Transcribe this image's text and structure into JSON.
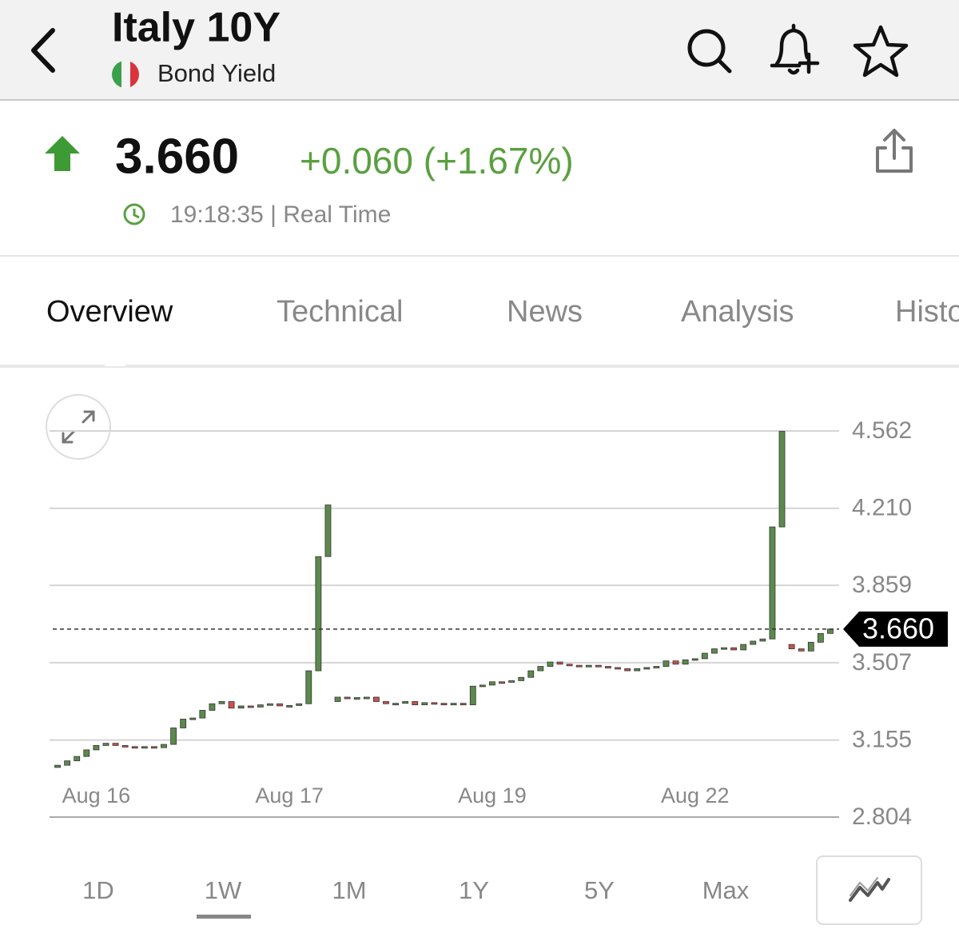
{
  "header": {
    "title": "Italy 10Y",
    "subtitle": "Bond Yield"
  },
  "quote": {
    "price": "3.660",
    "change": "+0.060 (+1.67%)",
    "time": "19:18:35 | Real Time"
  },
  "tabs": [
    "Overview",
    "Technical",
    "News",
    "Analysis",
    "Historical"
  ],
  "chart_data": {
    "type": "candlestick",
    "categories": [
      null,
      null,
      null,
      null,
      "Aug 16",
      null,
      null,
      null,
      null,
      null,
      null,
      null,
      null,
      null,
      null,
      null,
      null,
      null,
      null,
      null,
      null,
      null,
      null,
      null,
      "Aug 17",
      null,
      null,
      null,
      null,
      null,
      null,
      null,
      null,
      null,
      null,
      null,
      null,
      null,
      null,
      null,
      null,
      null,
      null,
      null,
      null,
      "Aug 19",
      null,
      null,
      null,
      null,
      null,
      null,
      null,
      null,
      null,
      null,
      null,
      null,
      null,
      null,
      null,
      null,
      null,
      null,
      null,
      null,
      "Aug 22",
      null,
      null,
      null,
      null,
      null,
      null,
      null,
      null,
      null,
      null,
      null,
      null,
      null,
      null
    ],
    "open": [
      3.03,
      3.04,
      3.06,
      3.08,
      3.11,
      3.13,
      3.14,
      3.13,
      3.125,
      3.12,
      3.125,
      3.12,
      3.135,
      3.21,
      3.25,
      3.255,
      3.29,
      3.32,
      3.33,
      3.3,
      3.31,
      3.305,
      3.315,
      3.32,
      3.31,
      3.312,
      3.32,
      3.47,
      3.99,
      3.33,
      3.35,
      3.345,
      3.348,
      3.35,
      3.33,
      3.32,
      3.322,
      3.33,
      3.315,
      3.325,
      3.322,
      3.32,
      3.322,
      3.315,
      3.4,
      3.405,
      3.42,
      3.418,
      3.425,
      3.44,
      3.47,
      3.49,
      3.51,
      3.5,
      3.495,
      3.492,
      3.495,
      3.49,
      3.485,
      3.48,
      3.47,
      3.48,
      3.485,
      3.49,
      3.515,
      3.5,
      3.52,
      3.525,
      3.55,
      3.57,
      3.575,
      3.565,
      3.59,
      3.605,
      3.615,
      4.125,
      3.59,
      3.57,
      3.56,
      3.6,
      3.64
    ],
    "close": [
      3.04,
      3.06,
      3.08,
      3.11,
      3.13,
      3.14,
      3.13,
      3.125,
      3.12,
      3.125,
      3.12,
      3.135,
      3.21,
      3.25,
      3.255,
      3.29,
      3.32,
      3.33,
      3.3,
      3.31,
      3.305,
      3.315,
      3.32,
      3.31,
      3.312,
      3.32,
      3.47,
      3.99,
      4.225,
      3.35,
      3.345,
      3.348,
      3.35,
      3.33,
      3.32,
      3.322,
      3.33,
      3.315,
      3.325,
      3.322,
      3.32,
      3.322,
      3.315,
      3.4,
      3.405,
      3.42,
      3.418,
      3.425,
      3.44,
      3.47,
      3.49,
      3.51,
      3.5,
      3.495,
      3.492,
      3.495,
      3.49,
      3.485,
      3.48,
      3.47,
      3.48,
      3.485,
      3.49,
      3.515,
      3.5,
      3.52,
      3.525,
      3.55,
      3.57,
      3.575,
      3.565,
      3.59,
      3.605,
      3.615,
      4.125,
      4.56,
      3.57,
      3.56,
      3.6,
      3.64,
      3.66
    ],
    "up_color": "#5b8a4c",
    "down_color": "#c9514e",
    "ylim": [
      2.804,
      4.562
    ],
    "yticks": [
      2.804,
      3.155,
      3.507,
      3.859,
      {
        "value": 4.21,
        "label": "4.210"
      },
      4.562
    ],
    "grid": true,
    "last": {
      "value": 3.66,
      "label": "3.660"
    }
  },
  "ranges": [
    "1D",
    "1W",
    "1M",
    "1Y",
    "5Y",
    "Max"
  ]
}
